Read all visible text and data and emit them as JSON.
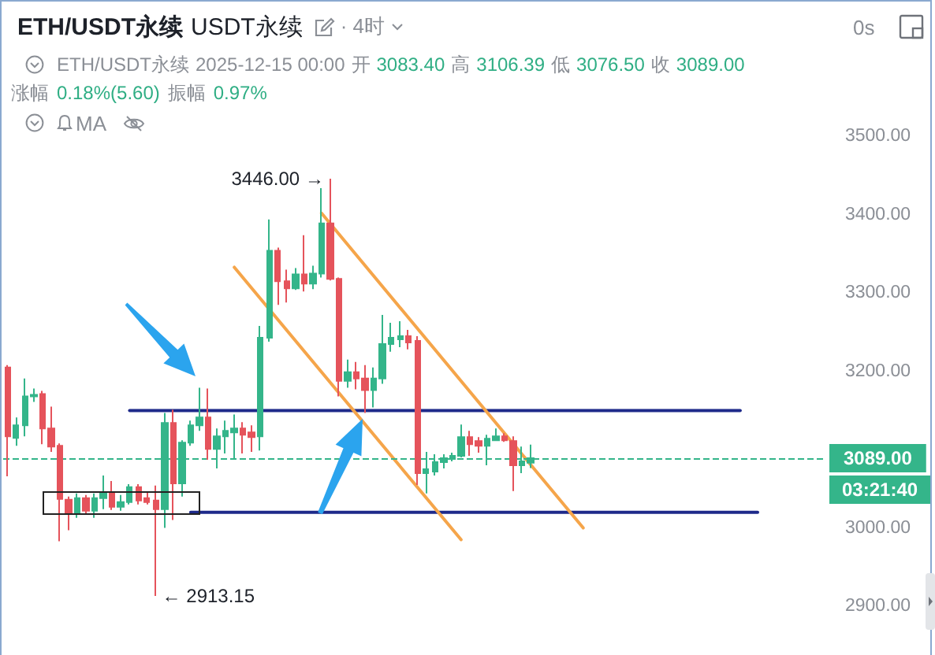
{
  "chart_data": {
    "type": "candlestick",
    "title": "ETH/USDT永续",
    "subtitle": "USDT永续",
    "annotations": [
      "· 4时",
      "0s",
      "ETH/USDT永续",
      "2025-12-15 00:00",
      "开",
      "3083.40",
      "高",
      "3106.39",
      "低",
      "3076.50",
      "收",
      "3089.00",
      "涨幅",
      "0.18%(5.60)",
      "振幅",
      "0.97%",
      "MA",
      "03:21:40",
      "3446.00 →",
      "← 2913.15"
    ],
    "categories": [
      null,
      null,
      null,
      null,
      null,
      null,
      null,
      null,
      null,
      null,
      null,
      null,
      null,
      null,
      null,
      null,
      null,
      null,
      null,
      null,
      null,
      null,
      null,
      null,
      null,
      null,
      null,
      null,
      null,
      null,
      null,
      null,
      null,
      null,
      null,
      null,
      null,
      null,
      null,
      null,
      null,
      null,
      null,
      null,
      null,
      null,
      null,
      null,
      null,
      null,
      null,
      null,
      null,
      null,
      null,
      null,
      null,
      null,
      null,
      null,
      null,
      null,
      null,
      null,
      null,
      null,
      null,
      null,
      null,
      null,
      null,
      null,
      null,
      null,
      null,
      null,
      null,
      null,
      null,
      null,
      null,
      null,
      null,
      null,
      null,
      null,
      null,
      null,
      null,
      null,
      null,
      null,
      null,
      null
    ],
    "ohlc": [
      [
        3205,
        3208,
        3066,
        3117
      ],
      [
        3115,
        3141,
        3105,
        3131
      ],
      [
        3131,
        3191,
        3117,
        3168
      ],
      [
        3168,
        3178,
        3161,
        3170
      ],
      [
        3171,
        3175,
        3107,
        3127
      ],
      [
        3127,
        3155,
        3097,
        3104
      ],
      [
        3105,
        3108,
        2983,
        3037
      ],
      [
        3036,
        3040,
        2997,
        3018
      ],
      [
        3018,
        3044,
        3013,
        3038
      ],
      [
        3038,
        3042,
        3018,
        3022
      ],
      [
        3022,
        3044,
        3013,
        3038
      ],
      [
        3038,
        3067,
        3024,
        3045
      ],
      [
        3045,
        3060,
        3023,
        3027
      ],
      [
        3027,
        3042,
        3022,
        3033
      ],
      [
        3033,
        3056,
        3030,
        3052
      ],
      [
        3052,
        3056,
        3030,
        3035
      ],
      [
        3038,
        3046,
        3030,
        3033
      ],
      [
        3035,
        3054,
        2913.15,
        3024
      ],
      [
        3024,
        3147,
        3000,
        3134
      ],
      [
        3134,
        3151,
        3010,
        3057
      ],
      [
        3057,
        3112,
        3040,
        3109
      ],
      [
        3109,
        3137,
        3105,
        3131
      ],
      [
        3131,
        3179,
        3124,
        3141
      ],
      [
        3141,
        3178,
        3087,
        3101
      ],
      [
        3101,
        3127,
        3076,
        3117
      ],
      [
        3117,
        3137,
        3095,
        3124
      ],
      [
        3122,
        3145,
        3089,
        3127
      ],
      [
        3127,
        3135,
        3095,
        3119
      ],
      [
        3122,
        3131,
        3097,
        3116
      ],
      [
        3117,
        3258,
        3099,
        3243
      ],
      [
        3243,
        3394,
        3238,
        3354
      ],
      [
        3354,
        3358,
        3285,
        3315
      ],
      [
        3315,
        3330,
        3288,
        3306
      ],
      [
        3306,
        3332,
        3304,
        3324
      ],
      [
        3324,
        3374,
        3302,
        3312
      ],
      [
        3312,
        3335,
        3305,
        3325
      ],
      [
        3325,
        3434,
        3320,
        3389
      ],
      [
        3389,
        3446,
        3316,
        3318
      ],
      [
        3318,
        3320,
        3168,
        3188
      ],
      [
        3188,
        3215,
        3179,
        3199
      ],
      [
        3199,
        3212,
        3177,
        3191
      ],
      [
        3191,
        3208,
        3147,
        3176
      ],
      [
        3176,
        3205,
        3154,
        3191
      ],
      [
        3191,
        3272,
        3184,
        3235
      ],
      [
        3235,
        3262,
        3225,
        3243
      ],
      [
        3241,
        3264,
        3231,
        3245
      ],
      [
        3245,
        3253,
        3228,
        3237
      ],
      [
        3239,
        3245,
        3055,
        3070
      ],
      [
        3070,
        3097,
        3044,
        3075
      ],
      [
        3072,
        3094,
        3067,
        3084
      ],
      [
        3084,
        3094,
        3076,
        3089
      ],
      [
        3088,
        3096,
        3085,
        3092
      ],
      [
        3092,
        3132,
        3090,
        3116
      ],
      [
        3116,
        3124,
        3092,
        3107
      ],
      [
        3111,
        3116,
        3096,
        3105
      ],
      [
        3105,
        3119,
        3080,
        3114
      ],
      [
        3112,
        3127,
        3111,
        3117
      ],
      [
        3117,
        3121,
        3110,
        3112
      ],
      [
        3111,
        3117,
        3047,
        3080
      ],
      [
        3080,
        3104,
        3070,
        3085
      ],
      [
        3083.4,
        3106.39,
        3076.5,
        3089.0
      ],
      null,
      null,
      null,
      null,
      null,
      null,
      null,
      null,
      null,
      null,
      null,
      null,
      null,
      null,
      null,
      null,
      null,
      null,
      null,
      null,
      null,
      null,
      null,
      null,
      null,
      null,
      null,
      null,
      null,
      null,
      null,
      null,
      null
    ],
    "colors": [
      "#e5535b",
      "#34b58a",
      "#34b58a",
      "#34b58a",
      "#e5535b",
      "#e5535b",
      "#e5535b",
      "#e5535b",
      "#34b58a",
      "#e5535b",
      "#34b58a",
      "#34b58a",
      "#e5535b",
      "#34b58a",
      "#34b58a",
      "#e5535b",
      "#e5535b",
      "#e5535b",
      "#34b58a",
      "#e5535b",
      "#34b58a",
      "#34b58a",
      "#34b58a",
      "#e5535b",
      "#34b58a",
      "#34b58a",
      "#34b58a",
      "#e5535b",
      "#e5535b",
      "#34b58a",
      "#34b58a",
      "#e5535b",
      "#e5535b",
      "#34b58a",
      "#e5535b",
      "#34b58a",
      "#34b58a",
      "#e5535b",
      "#e5535b",
      "#34b58a",
      "#e5535b",
      "#e5535b",
      "#34b58a",
      "#34b58a",
      "#34b58a",
      "#34b58a",
      "#e5535b",
      "#e5535b",
      "#34b58a",
      "#34b58a",
      "#34b58a",
      "#34b58a",
      "#34b58a",
      "#e5535b",
      "#e5535b",
      "#34b58a",
      "#34b58a",
      "#e5535b",
      "#e5535b",
      "#34b58a",
      "#34b58a",
      null,
      null,
      null,
      null,
      null,
      null,
      null,
      null,
      null,
      null,
      null,
      null,
      null,
      null,
      null,
      null,
      null,
      null,
      null,
      null,
      null,
      null,
      null,
      null,
      null,
      null,
      null,
      null,
      null,
      null,
      null,
      null,
      null
    ],
    "series": [
      {
        "type": "line",
        "color": "#1e2a8a",
        "values": [
          null,
          null,
          null,
          null,
          null,
          null,
          null,
          null,
          null,
          null,
          null,
          null,
          null,
          null,
          3150,
          null,
          null,
          null,
          null,
          null,
          null,
          null,
          null,
          null,
          null,
          null,
          null,
          null,
          null,
          null,
          null,
          null,
          null,
          null,
          null,
          null,
          null,
          null,
          null,
          null,
          null,
          null,
          null,
          null,
          null,
          null,
          null,
          null,
          null,
          null,
          null,
          null,
          null,
          null,
          null,
          null,
          null,
          null,
          null,
          null,
          null,
          null,
          null,
          null,
          null,
          null,
          null,
          null,
          null,
          null,
          null,
          null,
          null,
          null,
          null,
          null,
          null,
          null,
          null,
          null,
          null,
          null,
          null,
          null,
          3150,
          null,
          null,
          null,
          null,
          null,
          null,
          null,
          null,
          null
        ]
      },
      {
        "type": "line",
        "color": "#1e2a8a",
        "values": [
          null,
          null,
          null,
          null,
          null,
          null,
          null,
          null,
          null,
          null,
          null,
          null,
          null,
          null,
          null,
          null,
          null,
          null,
          null,
          null,
          null,
          3020,
          null,
          null,
          null,
          null,
          null,
          null,
          null,
          null,
          null,
          null,
          null,
          null,
          null,
          null,
          null,
          null,
          null,
          null,
          null,
          null,
          null,
          null,
          null,
          null,
          null,
          null,
          null,
          null,
          null,
          null,
          null,
          null,
          null,
          null,
          null,
          null,
          null,
          null,
          null,
          null,
          null,
          null,
          null,
          null,
          null,
          null,
          null,
          null,
          null,
          null,
          null,
          null,
          null,
          null,
          null,
          null,
          null,
          null,
          null,
          null,
          null,
          null,
          null,
          null,
          3020,
          null,
          null,
          null,
          null,
          null,
          null,
          null
        ]
      },
      {
        "type": "line",
        "color": "#f5a54a",
        "values": [
          null,
          null,
          null,
          null,
          null,
          null,
          null,
          null,
          null,
          null,
          null,
          null,
          null,
          null,
          null,
          null,
          null,
          null,
          null,
          null,
          null,
          null,
          null,
          null,
          null,
          null,
          null,
          null,
          null,
          null,
          null,
          null,
          null,
          null,
          null,
          null,
          3402,
          null,
          null,
          null,
          null,
          null,
          null,
          null,
          null,
          null,
          null,
          null,
          null,
          null,
          null,
          null,
          null,
          null,
          null,
          null,
          null,
          null,
          null,
          null,
          null,
          null,
          null,
          null,
          null,
          null,
          3000,
          null,
          null,
          null,
          null,
          null,
          null,
          null,
          null,
          null,
          null,
          null,
          null,
          null,
          null,
          null,
          null,
          null,
          null,
          null,
          null,
          null,
          null,
          null,
          null,
          null,
          null,
          null
        ]
      },
      {
        "type": "line",
        "color": "#f5a54a",
        "values": [
          null,
          null,
          null,
          null,
          null,
          null,
          null,
          null,
          null,
          null,
          null,
          null,
          null,
          null,
          null,
          null,
          null,
          null,
          null,
          null,
          null,
          null,
          null,
          null,
          null,
          null,
          3333,
          null,
          null,
          null,
          null,
          null,
          null,
          null,
          null,
          null,
          null,
          null,
          null,
          null,
          null,
          null,
          null,
          null,
          null,
          null,
          null,
          null,
          null,
          null,
          null,
          null,
          2985,
          null,
          null,
          null,
          null,
          null,
          null,
          null,
          null,
          null,
          null,
          null,
          null,
          null,
          null,
          null,
          null,
          null,
          null,
          null,
          null,
          null,
          null,
          null,
          null,
          null,
          null,
          null,
          null,
          null,
          null,
          null,
          null,
          null,
          null,
          null,
          null,
          null,
          null,
          null,
          null,
          null
        ]
      }
    ],
    "ylim": [
      2900,
      3500
    ],
    "yticks": [
      {
        "value": 2900,
        "label": "2900.00"
      },
      {
        "value": 3000,
        "label": "3000.00"
      },
      {
        "value": 3200,
        "label": "3200.00"
      },
      {
        "value": 3300,
        "label": "3300.00"
      },
      {
        "value": 3400,
        "label": "3400.00"
      },
      {
        "value": 3500,
        "label": "3500.00"
      }
    ],
    "ref_lines": [
      {
        "axis": "y",
        "value": 3089,
        "label": "3089.00",
        "color": "#34b58a",
        "line_style": "dashed"
      }
    ],
    "tick_labels": "y"
  }
}
